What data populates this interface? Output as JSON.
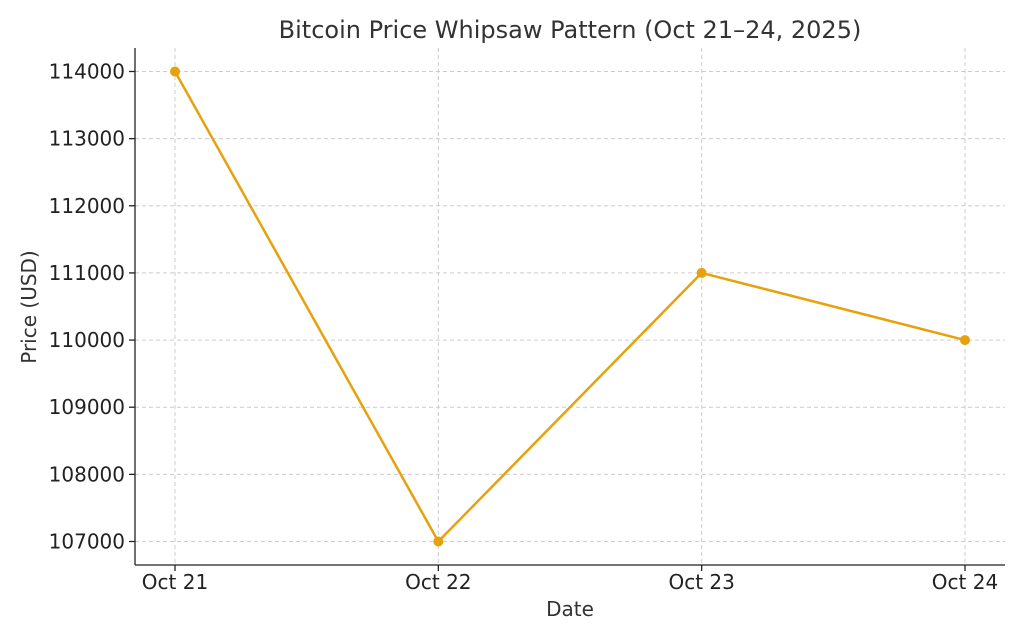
{
  "chart_data": {
    "type": "line",
    "title": "Bitcoin Price Whipsaw Pattern (Oct 21–24, 2025)",
    "xlabel": "Date",
    "ylabel": "Price (USD)",
    "categories": [
      "Oct 21",
      "Oct 22",
      "Oct 23",
      "Oct 24"
    ],
    "series": [
      {
        "values": [
          114000,
          107000,
          111000,
          110000
        ],
        "color": "#E6A10C"
      }
    ],
    "ylim": [
      106650,
      114350
    ],
    "yticks": [
      107000,
      108000,
      109000,
      110000,
      111000,
      112000,
      113000,
      114000
    ],
    "grid": true,
    "marker": "circle"
  }
}
